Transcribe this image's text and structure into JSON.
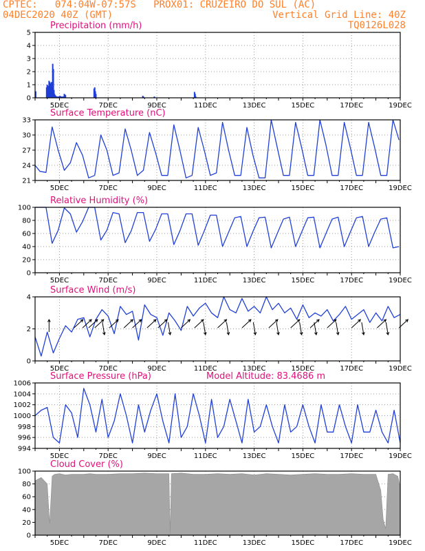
{
  "header": {
    "line1_left": "CPTEC:   074:04W-07:57S   PROX01: CRUZEIRO DO SUL (AC)",
    "line2_left": "04DEC2020 40Z (GMT)",
    "line2_right": "Vertical Grid Line: 40Z",
    "line3_right": "TQ0126L028"
  },
  "colors": {
    "header": "#ff7f27",
    "title": "#e0107a",
    "series": "#1f3fd6",
    "cloud": "#a6a6a6"
  },
  "x_ticks": [
    "5DEC",
    "7DEC",
    "9DEC",
    "11DEC",
    "13DEC",
    "15DEC",
    "17DEC",
    "19DEC"
  ],
  "chart_data": [
    {
      "type": "bar",
      "title": "Precipitation (mm/h)",
      "ylim": [
        0,
        5
      ],
      "yticks": [
        "0",
        "1",
        "2",
        "3",
        "4",
        "5"
      ],
      "x_days": [
        0.05,
        0.95,
        1.0,
        1.05,
        1.1,
        1.15,
        1.2,
        1.25,
        1.3,
        1.35,
        1.4,
        1.45,
        1.5,
        1.55,
        1.6,
        1.65,
        1.7,
        1.75,
        1.85,
        1.95,
        2.05,
        2.15,
        2.25,
        2.35,
        2.4,
        2.45,
        2.5,
        4.85,
        4.9,
        4.95,
        5.0,
        8.85,
        8.9,
        9.8,
        13.1,
        13.15,
        13.2
      ],
      "values": [
        0.5,
        0.8,
        1.0,
        0.7,
        0.9,
        1.3,
        1.2,
        0.5,
        1.1,
        1.2,
        0.8,
        2.6,
        2.2,
        0.6,
        0.3,
        0.2,
        0.15,
        0.1,
        0.1,
        0.1,
        0.15,
        0.1,
        0.1,
        0.1,
        0.3,
        0.25,
        0.2,
        0.7,
        0.8,
        0.5,
        0.3,
        0.15,
        0.1,
        0.1,
        0.45,
        0.3,
        0.1
      ]
    },
    {
      "type": "line",
      "title": "Surface Temperature (nC)",
      "ylim": [
        21,
        33
      ],
      "yticks": [
        "21",
        "24",
        "27",
        "30",
        "33"
      ],
      "x_days": [
        0,
        0.4,
        0.9,
        1.4,
        1.9,
        2.4,
        2.9,
        3.4,
        3.9,
        4.4,
        4.9,
        5.4,
        5.9,
        6.4,
        6.9,
        7.4,
        7.9,
        8.4,
        8.9,
        9.4,
        9.9,
        10.4,
        10.9,
        11.4,
        11.9,
        12.4,
        12.9,
        13.4,
        13.9,
        14.4,
        14.9,
        15.4,
        15.9,
        16.4,
        16.9,
        17.4,
        17.9,
        18.4,
        18.9,
        19.4,
        19.9,
        20.4,
        20.9,
        21.4,
        21.9,
        22.4,
        22.9,
        23.4,
        23.9,
        24.4,
        24.9,
        25.4,
        25.9,
        26.4,
        26.9,
        27.4,
        27.9,
        28.4,
        28.9,
        29.4,
        29.9
      ],
      "values": [
        24,
        22.8,
        22.6,
        31.6,
        27,
        23,
        24.5,
        28.5,
        26,
        21.5,
        22,
        30,
        27,
        22,
        22.5,
        31.2,
        27,
        22,
        23,
        30.5,
        26.5,
        22,
        22,
        32,
        27,
        21.5,
        22,
        31.5,
        27,
        22,
        22.5,
        32.5,
        27,
        22,
        22,
        31.5,
        26,
        21.5,
        21.5,
        33,
        27.5,
        22,
        22,
        32.5,
        27.5,
        22,
        22,
        33,
        28,
        22,
        22,
        32.5,
        27.5,
        22,
        22,
        32.5,
        27.5,
        22,
        22,
        33,
        29
      ]
    },
    {
      "type": "line",
      "title": "Relative Humidity (%)",
      "ylim": [
        0,
        100
      ],
      "yticks": [
        "0",
        "20",
        "40",
        "60",
        "80",
        "100"
      ],
      "x_days": [
        0,
        0.4,
        0.9,
        1.4,
        1.9,
        2.4,
        2.9,
        3.4,
        3.9,
        4.4,
        4.9,
        5.4,
        5.9,
        6.4,
        6.9,
        7.4,
        7.9,
        8.4,
        8.9,
        9.4,
        9.9,
        10.4,
        10.9,
        11.4,
        11.9,
        12.4,
        12.9,
        13.4,
        13.9,
        14.4,
        14.9,
        15.4,
        15.9,
        16.4,
        16.9,
        17.4,
        17.9,
        18.4,
        18.9,
        19.4,
        19.9,
        20.4,
        20.9,
        21.4,
        21.9,
        22.4,
        22.9,
        23.4,
        23.9,
        24.4,
        24.9,
        25.4,
        25.9,
        26.4,
        26.9,
        27.4,
        27.9,
        28.4,
        28.9,
        29.4,
        29.9
      ],
      "values": [
        100,
        100,
        100,
        45,
        65,
        99,
        90,
        62,
        78,
        100,
        100,
        50,
        65,
        92,
        90,
        46,
        64,
        92,
        92,
        48,
        66,
        90,
        90,
        43,
        64,
        90,
        90,
        42,
        64,
        88,
        88,
        40,
        62,
        84,
        86,
        40,
        63,
        84,
        85,
        38,
        60,
        82,
        85,
        40,
        62,
        84,
        85,
        38,
        60,
        82,
        85,
        40,
        62,
        84,
        86,
        40,
        62,
        82,
        84,
        38,
        40
      ]
    },
    {
      "type": "line",
      "title": "Surface Wind (m/s)",
      "ylim": [
        0,
        4
      ],
      "yticks": [
        "0",
        "2",
        "4"
      ],
      "x_days": [
        0,
        0.5,
        1,
        1.5,
        2,
        2.5,
        3,
        3.5,
        4,
        4.5,
        5,
        5.5,
        6,
        6.5,
        7,
        7.5,
        8,
        8.5,
        9,
        9.5,
        10,
        10.5,
        11,
        11.5,
        12,
        12.5,
        13,
        13.5,
        14,
        14.5,
        15,
        15.5,
        16,
        16.5,
        17,
        17.5,
        18,
        18.5,
        19,
        19.5,
        20,
        20.5,
        21,
        21.5,
        22,
        22.5,
        23,
        23.5,
        24,
        24.5,
        25,
        25.5,
        26,
        26.5,
        27,
        27.5,
        28,
        28.5,
        29,
        29.5,
        30
      ],
      "values": [
        1.5,
        0.3,
        1.8,
        0.5,
        1.4,
        2.2,
        1.8,
        2.6,
        2.7,
        1.5,
        2.6,
        3.2,
        2.8,
        1.7,
        3.4,
        2.9,
        3.1,
        1.3,
        3.5,
        2.9,
        2.7,
        1.6,
        3.0,
        2.5,
        1.9,
        3.4,
        2.8,
        3.3,
        3.6,
        3.0,
        2.7,
        4.0,
        3.2,
        3.0,
        3.9,
        3.1,
        3.4,
        3.0,
        4.0,
        3.2,
        3.6,
        3.0,
        3.3,
        2.6,
        3.5,
        2.7,
        3.0,
        2.8,
        3.2,
        2.5,
        2.9,
        3.4,
        2.6,
        2.9,
        3.2,
        2.4,
        3.0,
        2.5,
        3.4,
        2.7,
        2.9
      ],
      "arrows": [
        {
          "x_day": 1.15,
          "dir": "n"
        },
        {
          "x_day": 3.2,
          "dir": "ne"
        },
        {
          "x_day": 3.9,
          "dir": "ne"
        },
        {
          "x_day": 4.4,
          "dir": "ne"
        },
        {
          "x_day": 4.9,
          "dir": "ne"
        },
        {
          "x_day": 5.7,
          "dir": "s"
        },
        {
          "x_day": 6.1,
          "dir": "ne"
        },
        {
          "x_day": 7.3,
          "dir": "ne"
        },
        {
          "x_day": 8.0,
          "dir": "ne"
        },
        {
          "x_day": 9.2,
          "dir": "ne"
        },
        {
          "x_day": 10.1,
          "dir": "ne"
        },
        {
          "x_day": 11.1,
          "dir": "s"
        },
        {
          "x_day": 12.0,
          "dir": "ne"
        },
        {
          "x_day": 13.1,
          "dir": "ne"
        },
        {
          "x_day": 14.0,
          "dir": "s"
        },
        {
          "x_day": 15.0,
          "dir": "ne"
        },
        {
          "x_day": 15.9,
          "dir": "s"
        },
        {
          "x_day": 17.0,
          "dir": "ne"
        },
        {
          "x_day": 18.1,
          "dir": "s"
        },
        {
          "x_day": 19.2,
          "dir": "ne"
        },
        {
          "x_day": 20.0,
          "dir": "s"
        },
        {
          "x_day": 21.0,
          "dir": "ne"
        },
        {
          "x_day": 21.9,
          "dir": "s"
        },
        {
          "x_day": 22.6,
          "dir": "ne"
        },
        {
          "x_day": 23.1,
          "dir": "s"
        },
        {
          "x_day": 24.0,
          "dir": "ne"
        },
        {
          "x_day": 24.9,
          "dir": "s"
        },
        {
          "x_day": 26.0,
          "dir": "ne"
        },
        {
          "x_day": 27.0,
          "dir": "s"
        },
        {
          "x_day": 28.1,
          "dir": "ne"
        },
        {
          "x_day": 29.0,
          "dir": "s"
        },
        {
          "x_day": 29.9,
          "dir": "ne"
        }
      ]
    },
    {
      "type": "line",
      "title": "Surface Pressure (hPa)",
      "annotation": "Model Altitude: 83.4686 m",
      "ylim": [
        994,
        1006
      ],
      "yticks": [
        "994",
        "996",
        "998",
        "1000",
        "1002",
        "1004",
        "1006"
      ],
      "x_days": [
        0,
        0.5,
        1,
        1.5,
        2,
        2.5,
        3,
        3.5,
        4,
        4.5,
        5,
        5.5,
        6,
        6.5,
        7,
        7.5,
        8,
        8.5,
        9,
        9.5,
        10,
        10.5,
        11,
        11.5,
        12,
        12.5,
        13,
        13.5,
        14,
        14.5,
        15,
        15.5,
        16,
        16.5,
        17,
        17.5,
        18,
        18.5,
        19,
        19.5,
        20,
        20.5,
        21,
        21.5,
        22,
        22.5,
        23,
        23.5,
        24,
        24.5,
        25,
        25.5,
        26,
        26.5,
        27,
        27.5,
        28,
        28.5,
        29,
        29.5,
        30
      ],
      "values": [
        1000,
        1001,
        1001.5,
        996,
        995,
        1002,
        1000.5,
        996,
        1005,
        1002,
        997,
        1003,
        996,
        999,
        1004,
        1000,
        995,
        1002,
        997,
        1001,
        1004,
        999,
        995,
        1004,
        996,
        998,
        1004,
        1000,
        995,
        1003,
        996,
        998,
        1003,
        999,
        995,
        1003,
        997,
        998,
        1002,
        998,
        995,
        1002,
        997,
        998,
        1002,
        998,
        995,
        1002,
        997,
        997,
        1002,
        998,
        995,
        1002,
        997,
        997,
        1001,
        997,
        995,
        1001,
        995
      ]
    },
    {
      "type": "area",
      "title": "Cloud Cover (%)",
      "ylim": [
        0,
        100
      ],
      "yticks": [
        "0",
        "20",
        "40",
        "60",
        "80",
        "100"
      ],
      "x_days": [
        0,
        0.5,
        1,
        1.2,
        1.4,
        1.6,
        2,
        2.5,
        3,
        3.5,
        4,
        4.5,
        5,
        6,
        7,
        8,
        9,
        10,
        11,
        11.1,
        11.2,
        12,
        13,
        14,
        15,
        16,
        17,
        18,
        19,
        20,
        21,
        22,
        23,
        24,
        25,
        26,
        27,
        28,
        28.4,
        28.6,
        28.8,
        29,
        29.4,
        29.8,
        30
      ],
      "values": [
        85,
        90,
        80,
        18,
        92,
        95,
        96,
        94,
        95,
        95,
        95,
        96,
        95,
        95,
        96,
        96,
        97,
        96,
        96,
        2,
        96,
        97,
        95,
        95,
        96,
        95,
        96,
        94,
        96,
        95,
        94,
        95,
        96,
        95,
        95,
        96,
        95,
        95,
        70,
        25,
        10,
        95,
        96,
        92,
        75
      ]
    }
  ]
}
